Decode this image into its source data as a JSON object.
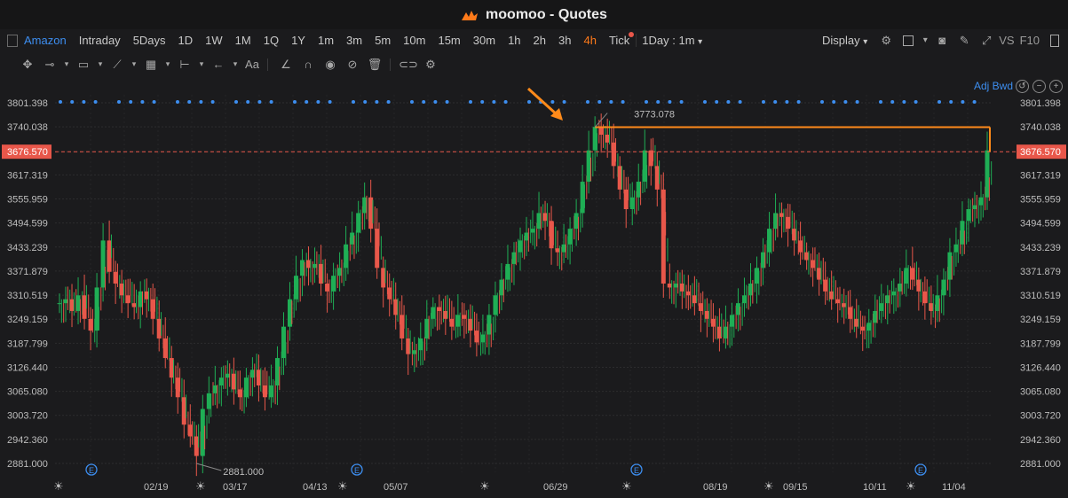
{
  "window": {
    "title": "moomoo - Quotes"
  },
  "toolbar": {
    "ticker": "Amazon",
    "periods": [
      "Intraday",
      "5Days",
      "1D",
      "1W",
      "1M",
      "1Q",
      "1Y",
      "1m",
      "3m",
      "5m",
      "10m",
      "15m",
      "30m",
      "1h",
      "2h",
      "3h",
      "4h",
      "Tick"
    ],
    "active_period": "4h",
    "interval_select": "1Day : 1m",
    "display_label": "Display",
    "vs_label": "VS",
    "f10_label": "F10"
  },
  "drawing_tools": [
    "crosshair-icon",
    "line-icon",
    "rectangle-icon",
    "polyline-icon",
    "gann-icon",
    "range-icon",
    "arrow-icon",
    "text-icon",
    "ruler-icon",
    "magnet-icon",
    "eye-icon",
    "hide-icon",
    "trash-icon",
    "link-icon",
    "settings-icon"
  ],
  "adj_label": "Adj Bwd",
  "colors": {
    "up": "#1fae55",
    "down": "#e8574a",
    "accent": "#ff8a1a",
    "price_line": "#e8574a"
  },
  "chart_data": {
    "type": "candlestick",
    "y_ticks": [
      "3801.398",
      "3740.038",
      "3676.570",
      "3617.319",
      "3555.959",
      "3494.599",
      "3433.239",
      "3371.879",
      "3310.519",
      "3249.159",
      "3187.799",
      "3126.440",
      "3065.080",
      "3003.720",
      "2942.360",
      "2881.000"
    ],
    "ylim": [
      2881.0,
      3801.398
    ],
    "x_ticks": [
      "02/19",
      "03/17",
      "04/13",
      "05/07",
      "06/29",
      "08/19",
      "09/15",
      "10/11",
      "11/04"
    ],
    "current_price": "3676.570",
    "high_label": "3773.078",
    "low_label": "2881.000",
    "close_series": [
      3290,
      3300,
      3270,
      3310,
      3250,
      3220,
      3330,
      3450,
      3370,
      3340,
      3310,
      3290,
      3280,
      3320,
      3300,
      3250,
      3200,
      3150,
      3100,
      3050,
      2980,
      2950,
      2900,
      3020,
      3060,
      3080,
      3100,
      3110,
      3070,
      3050,
      3100,
      3120,
      3080,
      3050,
      3080,
      3150,
      3230,
      3300,
      3360,
      3400,
      3380,
      3390,
      3340,
      3320,
      3360,
      3380,
      3440,
      3470,
      3520,
      3560,
      3480,
      3380,
      3330,
      3300,
      3260,
      3200,
      3160,
      3170,
      3200,
      3250,
      3280,
      3270,
      3250,
      3230,
      3260,
      3250,
      3220,
      3190,
      3210,
      3260,
      3310,
      3350,
      3390,
      3420,
      3450,
      3470,
      3480,
      3520,
      3500,
      3430,
      3420,
      3440,
      3480,
      3520,
      3600,
      3680,
      3740,
      3720,
      3700,
      3640,
      3580,
      3530,
      3560,
      3600,
      3680,
      3640,
      3580,
      3340,
      3330,
      3340,
      3320,
      3310,
      3290,
      3270,
      3250,
      3230,
      3200,
      3230,
      3260,
      3290,
      3310,
      3340,
      3380,
      3420,
      3480,
      3520,
      3510,
      3480,
      3450,
      3420,
      3400,
      3380,
      3350,
      3320,
      3300,
      3290,
      3280,
      3250,
      3230,
      3220,
      3240,
      3270,
      3290,
      3310,
      3320,
      3340,
      3380,
      3350,
      3320,
      3290,
      3270,
      3310,
      3350,
      3420,
      3440,
      3500,
      3530,
      3540,
      3560,
      3680
    ]
  },
  "events": {
    "marker_label": "E",
    "count": 4
  }
}
